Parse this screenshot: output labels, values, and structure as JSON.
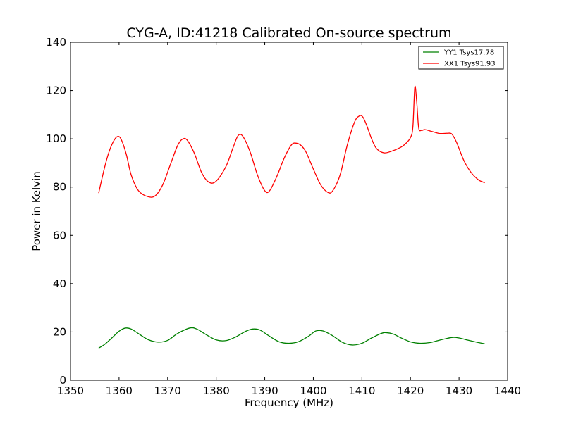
{
  "chart_data": {
    "type": "line",
    "title": "CYG-A, ID:41218 Calibrated On-source spectrum",
    "xlabel": "Frequency (MHz)",
    "ylabel": "Power in Kelvin",
    "xlim": [
      1350,
      1440
    ],
    "ylim": [
      0,
      140
    ],
    "xticks": [
      1350,
      1360,
      1370,
      1380,
      1390,
      1400,
      1410,
      1420,
      1430,
      1440
    ],
    "yticks": [
      0,
      20,
      40,
      60,
      80,
      100,
      120,
      140
    ],
    "grid": false,
    "legend_position": "top-right",
    "series": [
      {
        "name": "YY1 Tsys17.78",
        "color": "#008000",
        "x": [
          1355.8,
          1357,
          1358.5,
          1360,
          1361.3,
          1362.5,
          1364,
          1366,
          1368,
          1370,
          1372,
          1374.5,
          1376,
          1378,
          1380,
          1382,
          1384,
          1386,
          1387.5,
          1389,
          1391,
          1393,
          1395,
          1397,
          1399,
          1400.5,
          1402,
          1404,
          1406,
          1408,
          1410,
          1412,
          1414,
          1415,
          1416.5,
          1418,
          1420,
          1422,
          1424,
          1426,
          1428.5,
          1430,
          1432,
          1434,
          1435.3
        ],
        "y": [
          13.3,
          14.8,
          17.5,
          20.3,
          21.6,
          21.2,
          19.3,
          16.8,
          15.8,
          16.5,
          19.3,
          21.6,
          21.2,
          18.8,
          16.7,
          16.4,
          17.9,
          20.2,
          21.2,
          20.8,
          18.2,
          15.9,
          15.3,
          16.0,
          18.2,
          20.4,
          20.4,
          18.4,
          15.7,
          14.6,
          15.3,
          17.5,
          19.4,
          19.7,
          19.1,
          17.6,
          15.9,
          15.3,
          15.6,
          16.6,
          17.7,
          17.5,
          16.5,
          15.6,
          15.1
        ]
      },
      {
        "name": "XX1 Tsys91.93",
        "color": "#ff0000",
        "x": [
          1355.8,
          1357,
          1358,
          1359,
          1359.8,
          1360.5,
          1361.5,
          1362.5,
          1364,
          1366,
          1367.5,
          1369,
          1370.5,
          1372,
          1373,
          1374,
          1375.5,
          1377,
          1378.5,
          1380,
          1382,
          1383.5,
          1384.5,
          1385.5,
          1387,
          1388.5,
          1390,
          1391,
          1392.5,
          1394,
          1395.5,
          1396.5,
          1397.5,
          1398.5,
          1400,
          1401.5,
          1403,
          1404,
          1405.5,
          1407,
          1408.5,
          1409.5,
          1410.2,
          1411,
          1412,
          1413,
          1414.5,
          1416,
          1418,
          1419,
          1420,
          1420.5,
          1420.9,
          1421.3,
          1421.7,
          1422.3,
          1423,
          1424.5,
          1426,
          1427.5,
          1428.5,
          1429.5,
          1431,
          1432.5,
          1434,
          1435.3
        ],
        "y": [
          77.5,
          88.0,
          95.0,
          99.5,
          101.0,
          99.5,
          93.5,
          85.0,
          78.5,
          76.0,
          76.5,
          81.0,
          89.0,
          97.0,
          99.8,
          99.5,
          94.0,
          86.0,
          82.0,
          82.5,
          88.5,
          96.5,
          101.3,
          101.0,
          94.5,
          85.0,
          78.5,
          78.5,
          84.5,
          92.0,
          97.5,
          98.2,
          97.2,
          94.5,
          87.5,
          81.0,
          77.8,
          78.5,
          85.0,
          97.5,
          107.0,
          109.5,
          109.0,
          105.5,
          100.0,
          96.0,
          94.2,
          94.8,
          96.5,
          98.0,
          100.5,
          105.0,
          121.5,
          115.0,
          104.5,
          103.5,
          103.8,
          103.0,
          102.2,
          102.3,
          102.0,
          98.5,
          91.0,
          86.0,
          83.0,
          81.8
        ]
      }
    ]
  }
}
